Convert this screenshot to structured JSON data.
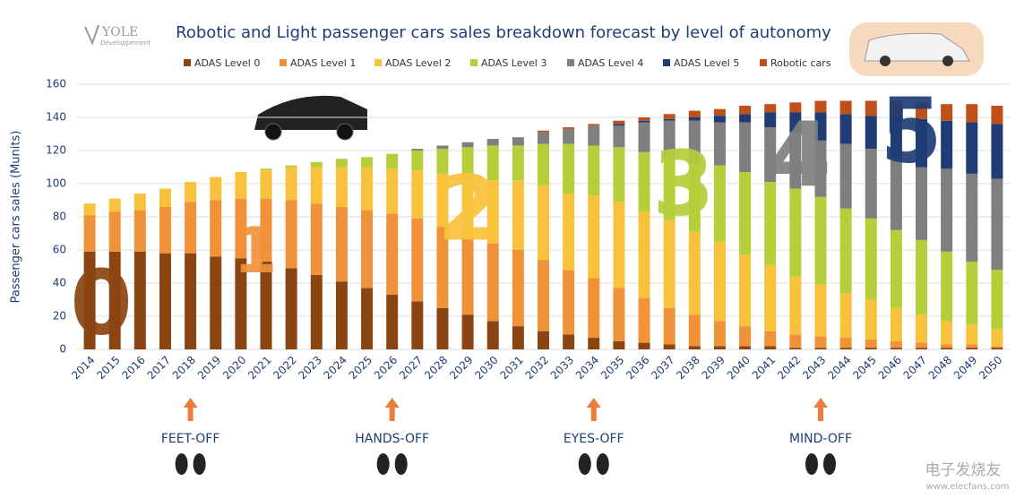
{
  "chart_data": {
    "type": "stacked_bar",
    "title": "Robotic and Light passenger cars sales breakdown forecast by level of autonomy",
    "y_label": "Passenger cars sales (Munits)",
    "logo": "YOLE",
    "logo_sub": "Développement",
    "watermark": "电子发烧友",
    "watermark_url": "www.elecfans.com",
    "categories": [
      "2014",
      "2015",
      "2016",
      "2017",
      "2018",
      "2019",
      "2020",
      "2021",
      "2022",
      "2023",
      "2024",
      "2025",
      "2026",
      "2027",
      "2028",
      "2029",
      "2030",
      "2031",
      "2032",
      "2033",
      "2034",
      "2035",
      "2036",
      "2037",
      "2038",
      "2039",
      "2040",
      "2041",
      "2042",
      "2043",
      "2044",
      "2045",
      "2046",
      "2047",
      "2048",
      "2049",
      "2050"
    ],
    "series": [
      {
        "name": "ADAS Level 0",
        "color": "#8b4513",
        "values": [
          59,
          59,
          59,
          58,
          58,
          56,
          55,
          53,
          49,
          45,
          41,
          37,
          33,
          29,
          25,
          21,
          17,
          14,
          11,
          9,
          7,
          5,
          4,
          3,
          2,
          2,
          2,
          2,
          1,
          1,
          1,
          1,
          1,
          1,
          1,
          1,
          1
        ]
      },
      {
        "name": "ADAS Level 1",
        "color": "#f0923a",
        "values": [
          22,
          24,
          25,
          28,
          31,
          34,
          36,
          38,
          41,
          43,
          45,
          47,
          49,
          50,
          49,
          47,
          47,
          46,
          43,
          39,
          36,
          32,
          27,
          22,
          19,
          15,
          12,
          9,
          8,
          7,
          6,
          5,
          4,
          3,
          2,
          2,
          1
        ]
      },
      {
        "name": "ADAS Level 2",
        "color": "#f9c23c",
        "values": [
          7,
          8,
          10,
          11,
          12,
          14,
          16,
          17,
          20,
          22,
          24,
          26,
          27,
          29,
          32,
          36,
          38,
          42,
          45,
          46,
          50,
          52,
          52,
          53,
          50,
          48,
          43,
          40,
          35,
          31,
          27,
          24,
          20,
          17,
          14,
          12,
          10
        ]
      },
      {
        "name": "ADAS Level 3",
        "color": "#b5cf3a",
        "values": [
          0,
          0,
          0,
          0,
          0,
          0,
          0,
          1,
          1,
          3,
          5,
          6,
          9,
          12,
          15,
          18,
          21,
          21,
          25,
          30,
          30,
          33,
          36,
          38,
          41,
          46,
          50,
          50,
          53,
          53,
          51,
          49,
          47,
          45,
          42,
          38,
          36
        ]
      },
      {
        "name": "ADAS Level 4",
        "color": "#7f7f7f",
        "values": [
          0,
          0,
          0,
          0,
          0,
          0,
          0,
          0,
          0,
          0,
          0,
          0,
          0,
          1,
          2,
          3,
          4,
          5,
          7,
          9,
          12,
          13,
          18,
          22,
          26,
          26,
          30,
          33,
          34,
          34,
          39,
          42,
          43,
          44,
          50,
          53,
          55
        ]
      },
      {
        "name": "ADAS Level 5",
        "color": "#1f3c74",
        "values": [
          0,
          0,
          0,
          0,
          0,
          0,
          0,
          0,
          0,
          0,
          0,
          0,
          0,
          0,
          0,
          0,
          0,
          0,
          0,
          0,
          0,
          1,
          1,
          1,
          2,
          4,
          5,
          9,
          12,
          17,
          18,
          20,
          25,
          29,
          29,
          31,
          33
        ]
      },
      {
        "name": "Robotic cars",
        "color": "#c0501a",
        "values": [
          0,
          0,
          0,
          0,
          0,
          0,
          0,
          0,
          0,
          0,
          0,
          0,
          0,
          0,
          0,
          0,
          0,
          0,
          1,
          1,
          1,
          2,
          2,
          3,
          4,
          4,
          5,
          5,
          6,
          7,
          8,
          9,
          10,
          10,
          10,
          11,
          11
        ]
      }
    ],
    "ylim": [
      0,
      160
    ],
    "yticks": [
      0,
      20,
      40,
      60,
      80,
      100,
      120,
      140,
      160
    ],
    "grid": true,
    "levels": [
      {
        "label": "0",
        "color": "#8b4513"
      },
      {
        "label": "1",
        "color": "#f0923a"
      },
      {
        "label": "2",
        "color": "#f9c23c"
      },
      {
        "label": "3",
        "color": "#b5cf3a"
      },
      {
        "label": "4",
        "color": "#7f7f7f"
      },
      {
        "label": "5",
        "color": "#1f3c74"
      }
    ],
    "milestones": [
      {
        "label": "FEET-OFF",
        "category": "2018"
      },
      {
        "label": "HANDS-OFF",
        "category": "2026"
      },
      {
        "label": "EYES-OFF",
        "category": "2034"
      },
      {
        "label": "MIND-OFF",
        "category": "2043"
      }
    ]
  }
}
